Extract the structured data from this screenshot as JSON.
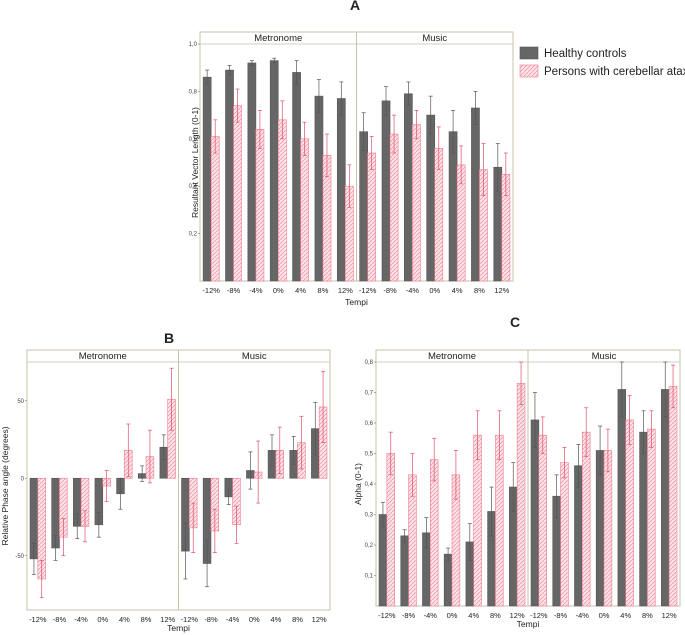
{
  "colors": {
    "healthy": "#666666",
    "ataxia_fill": "#fcd8de",
    "ataxia_stroke": "#ef7c90",
    "frame": "#c8c3a8"
  },
  "legend": {
    "healthy": "Healthy controls",
    "ataxia": "Persons with cerebellar ataxia"
  },
  "chart_data": [
    {
      "id": "A",
      "type": "bar",
      "panel_label": "A",
      "facets": [
        "Metronome",
        "Music"
      ],
      "categories": [
        "-12%",
        "-8%",
        "-4%",
        "0%",
        "4%",
        "8%",
        "12%"
      ],
      "xlabel": "Tempi",
      "ylabel": "Resultant Vector Length (0-1)",
      "ylim": [
        0,
        1
      ],
      "yticks": [
        0.2,
        0.4,
        0.6,
        0.8,
        1
      ],
      "ytick_labels": [
        "0,2",
        "0,4",
        "0,6",
        "0,8",
        "1,0"
      ],
      "series": [
        {
          "name": "Healthy controls",
          "values": [
            [
              0.86,
              0.89,
              0.92,
              0.93,
              0.88,
              0.78,
              0.77
            ],
            [
              0.63,
              0.76,
              0.79,
              0.7,
              0.63,
              0.73,
              0.48
            ]
          ],
          "errors": [
            [
              0.03,
              0.02,
              0.01,
              0.01,
              0.05,
              0.07,
              0.07
            ],
            [
              0.08,
              0.06,
              0.05,
              0.08,
              0.09,
              0.07,
              0.1
            ]
          ]
        },
        {
          "name": "Persons with cerebellar ataxia",
          "values": [
            [
              0.61,
              0.74,
              0.64,
              0.68,
              0.6,
              0.53,
              0.4
            ],
            [
              0.54,
              0.62,
              0.66,
              0.56,
              0.49,
              0.47,
              0.45
            ]
          ],
          "errors": [
            [
              0.07,
              0.07,
              0.08,
              0.08,
              0.07,
              0.09,
              0.09
            ],
            [
              0.07,
              0.08,
              0.06,
              0.09,
              0.08,
              0.11,
              0.09
            ]
          ]
        }
      ]
    },
    {
      "id": "B",
      "type": "bar",
      "panel_label": "B",
      "facets": [
        "Metronome",
        "Music"
      ],
      "categories": [
        "-12%",
        "-8%",
        "-4%",
        "0%",
        "4%",
        "8%",
        "12%"
      ],
      "xlabel": "Tempi",
      "ylabel": "Relative Phase angle (degrees)",
      "ylim": [
        -85,
        75
      ],
      "yticks": [
        -50,
        0,
        50
      ],
      "ytick_labels": [
        "-50",
        "0",
        "50"
      ],
      "series": [
        {
          "name": "Healthy controls",
          "values": [
            [
              -52,
              -45,
              -31,
              -30,
              -10,
              3,
              20
            ],
            [
              -47,
              -55,
              -12,
              5,
              18,
              18,
              32
            ]
          ],
          "errors": [
            [
              10,
              8,
              8,
              8,
              10,
              5,
              8
            ],
            [
              18,
              15,
              5,
              12,
              10,
              9,
              17
            ]
          ]
        },
        {
          "name": "Persons with cerebellar ataxia",
          "values": [
            [
              -65,
              -38,
              -31,
              -5,
              18,
              14,
              51
            ],
            [
              -32,
              -34,
              -30,
              4,
              18,
              23,
              46
            ]
          ],
          "errors": [
            [
              12,
              12,
              10,
              10,
              17,
              17,
              20
            ],
            [
              16,
              14,
              12,
              20,
              15,
              17,
              23
            ]
          ]
        }
      ]
    },
    {
      "id": "C",
      "type": "bar",
      "panel_label": "C",
      "facets": [
        "Metronome",
        "Music"
      ],
      "categories": [
        "-12%",
        "-8%",
        "-4%",
        "0%",
        "4%",
        "8%",
        "12%"
      ],
      "xlabel": "Tempi",
      "ylabel": "Alpha (0-1)",
      "ylim": [
        0,
        0.8
      ],
      "yticks": [
        0.1,
        0.2,
        0.3,
        0.4,
        0.5,
        0.6,
        0.7,
        0.8
      ],
      "ytick_labels": [
        "0,1",
        "0,2",
        "0,3",
        "0,4",
        "0,5",
        "0,6",
        "0,7",
        "0,8"
      ],
      "series": [
        {
          "name": "Healthy controls",
          "values": [
            [
              0.3,
              0.23,
              0.24,
              0.17,
              0.21,
              0.31,
              0.39
            ],
            [
              0.61,
              0.36,
              0.46,
              0.51,
              0.71,
              0.57,
              0.71
            ]
          ],
          "errors": [
            [
              0.04,
              0.02,
              0.05,
              0.02,
              0.06,
              0.08,
              0.08
            ],
            [
              0.09,
              0.07,
              0.07,
              0.08,
              0.09,
              0.07,
              0.09
            ]
          ]
        },
        {
          "name": "Persons with cerebellar ataxia",
          "values": [
            [
              0.5,
              0.43,
              0.48,
              0.43,
              0.56,
              0.56,
              0.73
            ],
            [
              0.56,
              0.47,
              0.57,
              0.51,
              0.61,
              0.58,
              0.72
            ]
          ],
          "errors": [
            [
              0.07,
              0.07,
              0.07,
              0.08,
              0.08,
              0.08,
              0.07
            ],
            [
              0.06,
              0.05,
              0.08,
              0.07,
              0.08,
              0.06,
              0.07
            ]
          ]
        }
      ]
    }
  ]
}
